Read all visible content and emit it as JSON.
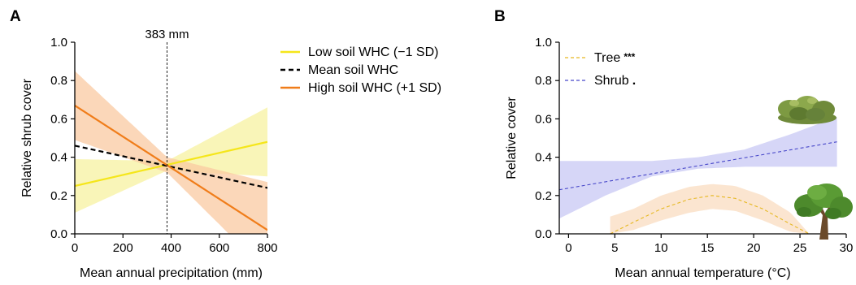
{
  "chart_data": [
    {
      "panel": "A",
      "type": "line",
      "xlabel": "Mean annual precipitation (mm)",
      "ylabel": "Relative shrub cover",
      "xlim": [
        0,
        800
      ],
      "ylim": [
        0,
        1.0
      ],
      "xticks": [
        0,
        200,
        400,
        600,
        800
      ],
      "yticks": [
        0.0,
        0.2,
        0.4,
        0.6,
        0.8,
        1.0
      ],
      "grid": false,
      "legend_position": "top-right",
      "annotation": {
        "text": "383 mm",
        "x": 383
      },
      "series": [
        {
          "name": "Low soil WHC (−1 SD)",
          "style": "solid",
          "color": "#f5e61a",
          "band_color": "#f7f2a0",
          "x": [
            0,
            800
          ],
          "y": [
            0.25,
            0.48
          ],
          "band": {
            "x": [
              0,
              383,
              800
            ],
            "lower": [
              0.11,
              0.33,
              0.3
            ],
            "upper": [
              0.39,
              0.38,
              0.66
            ]
          }
        },
        {
          "name": "Mean soil WHC",
          "style": "dashed",
          "color": "#000000",
          "x": [
            0,
            800
          ],
          "y": [
            0.46,
            0.24
          ]
        },
        {
          "name": "High soil WHC (+1 SD)",
          "style": "solid",
          "color": "#f07d1a",
          "band_color": "#f9c9a2",
          "x": [
            0,
            800
          ],
          "y": [
            0.67,
            0.02
          ],
          "band": {
            "x": [
              0,
              383,
              800
            ],
            "lower": [
              0.49,
              0.32,
              -0.2
            ],
            "upper": [
              0.85,
              0.4,
              0.27
            ]
          }
        }
      ]
    },
    {
      "panel": "B",
      "type": "line",
      "xlabel": "Mean annual temperature (°C)",
      "ylabel": "Relative cover",
      "xlim": [
        -1,
        30
      ],
      "ylim": [
        0,
        1.0
      ],
      "xticks": [
        0,
        5,
        10,
        15,
        20,
        25,
        30
      ],
      "yticks": [
        0.0,
        0.2,
        0.4,
        0.6,
        0.8,
        1.0
      ],
      "grid": false,
      "legend_position": "top-left",
      "series": [
        {
          "name": "Tree",
          "significance": "***",
          "style": "dashed",
          "color": "#e6b820",
          "band_color": "#f9dcc0",
          "x": [
            4.5,
            7,
            10,
            13,
            15.5,
            18,
            21,
            24,
            26
          ],
          "y": [
            0.0,
            0.06,
            0.13,
            0.18,
            0.2,
            0.185,
            0.13,
            0.05,
            0.0
          ],
          "band": {
            "x": [
              4.5,
              7,
              10,
              13,
              15.5,
              18,
              21,
              24,
              26
            ],
            "lower": [
              0.0,
              0.02,
              0.07,
              0.11,
              0.13,
              0.12,
              0.07,
              0.01,
              0.0
            ],
            "upper": [
              0.09,
              0.13,
              0.2,
              0.245,
              0.26,
              0.25,
              0.2,
              0.11,
              0.0
            ]
          }
        },
        {
          "name": "Shrub",
          "significance": ".",
          "style": "dashed",
          "color": "#4747c9",
          "band_color": "#c8c8f4",
          "x": [
            -1,
            29
          ],
          "y": [
            0.23,
            0.48
          ],
          "band": {
            "x": [
              -1,
              4,
              9,
              14,
              19,
              24,
              29
            ],
            "lower": [
              0.08,
              0.2,
              0.3,
              0.34,
              0.35,
              0.35,
              0.35
            ],
            "upper": [
              0.38,
              0.38,
              0.38,
              0.4,
              0.44,
              0.52,
              0.61
            ]
          }
        }
      ]
    }
  ],
  "panel_labels": {
    "a": "A",
    "b": "B"
  },
  "icons": {
    "shrub": "shrub-illustration",
    "tree": "tree-illustration"
  },
  "colors": {
    "low_whc": "#f5e61a",
    "high_whc": "#f07d1a",
    "tree": "#e6b820",
    "shrub": "#4747c9"
  }
}
